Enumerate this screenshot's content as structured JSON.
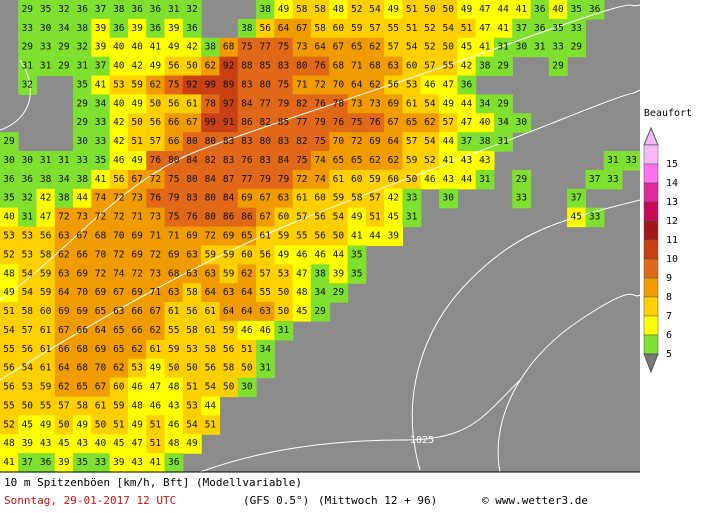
{
  "map": {
    "rows": [
      [
        null,
        29,
        35,
        32,
        36,
        37,
        38,
        36,
        36,
        31,
        32,
        null,
        null,
        null,
        38,
        49,
        58,
        58,
        48,
        52,
        54,
        49,
        51,
        50,
        50,
        49,
        47,
        44,
        41,
        36,
        40,
        35,
        36
      ],
      [
        null,
        33,
        30,
        34,
        38,
        39,
        36,
        39,
        36,
        39,
        36,
        null,
        null,
        38,
        56,
        64,
        67,
        58,
        60,
        59,
        57,
        55,
        51,
        52,
        54,
        51,
        47,
        41,
        37,
        36,
        35,
        33
      ],
      [
        null,
        29,
        33,
        29,
        32,
        39,
        40,
        40,
        41,
        49,
        42,
        38,
        68,
        75,
        77,
        75,
        73,
        64,
        67,
        65,
        62,
        57,
        54,
        52,
        50,
        45,
        41,
        31,
        30,
        31,
        33,
        29
      ],
      [
        null,
        31,
        31,
        29,
        31,
        37,
        40,
        42,
        49,
        56,
        50,
        62,
        92,
        88,
        85,
        83,
        80,
        76,
        68,
        71,
        68,
        63,
        60,
        57,
        55,
        42,
        38,
        29,
        null,
        null,
        29
      ],
      [
        null,
        32,
        null,
        null,
        35,
        41,
        53,
        59,
        62,
        75,
        92,
        99,
        89,
        83,
        80,
        75,
        71,
        72,
        70,
        64,
        62,
        56,
        53,
        46,
        47,
        36
      ],
      [
        null,
        null,
        null,
        null,
        29,
        34,
        40,
        49,
        50,
        56,
        61,
        78,
        97,
        84,
        77,
        79,
        82,
        76,
        78,
        73,
        73,
        69,
        61,
        54,
        49,
        44,
        34,
        29
      ],
      [
        null,
        null,
        null,
        null,
        29,
        33,
        42,
        50,
        56,
        66,
        67,
        99,
        91,
        86,
        82,
        85,
        77,
        79,
        76,
        75,
        76,
        67,
        65,
        62,
        57,
        47,
        40,
        34,
        30
      ],
      [
        29,
        null,
        null,
        null,
        30,
        33,
        42,
        51,
        57,
        66,
        80,
        80,
        83,
        83,
        80,
        83,
        82,
        75,
        70,
        72,
        69,
        64,
        57,
        54,
        44,
        37,
        38,
        31
      ],
      [
        30,
        30,
        31,
        31,
        33,
        35,
        46,
        49,
        76,
        80,
        84,
        82,
        83,
        76,
        83,
        84,
        75,
        74,
        65,
        65,
        62,
        62,
        59,
        52,
        41,
        43,
        43,
        null,
        null,
        null,
        null,
        null,
        null,
        31,
        33
      ],
      [
        36,
        36,
        38,
        34,
        38,
        41,
        56,
        67,
        72,
        75,
        80,
        84,
        87,
        77,
        79,
        79,
        72,
        74,
        61,
        60,
        59,
        60,
        50,
        46,
        43,
        44,
        31,
        null,
        29,
        null,
        null,
        null,
        37,
        33
      ],
      [
        35,
        32,
        42,
        38,
        44,
        74,
        72,
        73,
        76,
        79,
        83,
        80,
        84,
        69,
        67,
        63,
        61,
        60,
        59,
        58,
        57,
        42,
        33,
        null,
        30,
        null,
        null,
        null,
        33,
        null,
        null,
        37
      ],
      [
        40,
        31,
        47,
        72,
        73,
        72,
        72,
        71,
        73,
        75,
        76,
        80,
        86,
        86,
        67,
        60,
        57,
        56,
        54,
        49,
        51,
        45,
        31,
        null,
        null,
        null,
        null,
        null,
        null,
        null,
        null,
        45,
        33
      ],
      [
        53,
        53,
        56,
        63,
        67,
        68,
        70,
        69,
        71,
        71,
        69,
        72,
        69,
        65,
        61,
        59,
        55,
        56,
        50,
        41,
        44,
        39
      ],
      [
        52,
        53,
        58,
        62,
        66,
        70,
        72,
        69,
        72,
        69,
        63,
        59,
        59,
        60,
        56,
        49,
        46,
        46,
        44,
        35
      ],
      [
        48,
        54,
        59,
        63,
        69,
        72,
        74,
        72,
        73,
        68,
        63,
        63,
        59,
        62,
        57,
        53,
        47,
        38,
        39,
        35
      ],
      [
        49,
        54,
        59,
        64,
        70,
        69,
        67,
        69,
        71,
        63,
        58,
        64,
        63,
        64,
        55,
        50,
        48,
        34,
        29
      ],
      [
        51,
        58,
        60,
        69,
        69,
        65,
        63,
        66,
        67,
        61,
        56,
        61,
        64,
        64,
        63,
        50,
        45,
        29
      ],
      [
        54,
        57,
        61,
        67,
        66,
        64,
        65,
        66,
        62,
        55,
        58,
        61,
        59,
        46,
        46,
        31
      ],
      [
        55,
        56,
        61,
        66,
        68,
        69,
        65,
        62,
        61,
        59,
        53,
        58,
        56,
        51,
        34
      ],
      [
        56,
        54,
        61,
        64,
        68,
        70,
        62,
        53,
        49,
        50,
        50,
        56,
        58,
        50,
        31
      ],
      [
        56,
        53,
        59,
        62,
        65,
        67,
        60,
        46,
        47,
        48,
        51,
        54,
        50,
        30
      ],
      [
        55,
        50,
        55,
        57,
        58,
        61,
        59,
        48,
        46,
        43,
        53,
        44
      ],
      [
        52,
        45,
        49,
        50,
        49,
        50,
        51,
        49,
        51,
        46,
        54,
        51
      ],
      [
        48,
        39,
        43,
        45,
        43,
        40,
        45,
        47,
        51,
        48,
        49
      ],
      [
        41,
        37,
        36,
        39,
        35,
        33,
        39,
        43,
        41,
        36
      ]
    ],
    "isobar_label": "1025"
  },
  "legend": {
    "title": "Beaufort",
    "items": [
      {
        "value": 15,
        "color": "#f8b8f8"
      },
      {
        "value": 14,
        "color": "#ff70f0"
      },
      {
        "value": 13,
        "color": "#e0289a"
      },
      {
        "value": 12,
        "color": "#c80858"
      },
      {
        "value": 11,
        "color": "#a01818"
      },
      {
        "value": 10,
        "color": "#c84014"
      },
      {
        "value": 9,
        "color": "#e06818"
      },
      {
        "value": 8,
        "color": "#f09c00"
      },
      {
        "value": 7,
        "color": "#ffd000"
      },
      {
        "value": 6,
        "color": "#ffff00"
      },
      {
        "value": 5,
        "color": "#80e030"
      }
    ]
  },
  "footer": {
    "line1": "10 m Spitzenböen [km/h, Bft] (Modellvariable)",
    "date": "Sonntag, 29-01-2017  12 UTC",
    "model": "(GFS 0.5°)",
    "run": "(Mittwoch 12 + 96)",
    "credit": "© www.wetter3.de"
  }
}
